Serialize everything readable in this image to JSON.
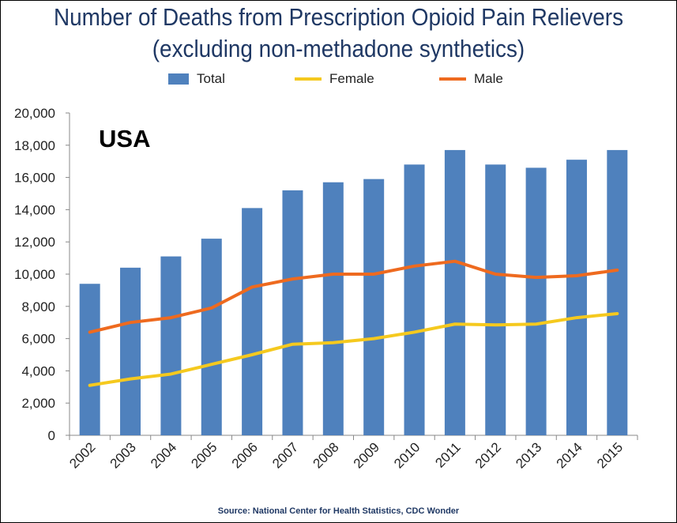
{
  "chart_data": {
    "type": "bar",
    "title": "Number of Deaths from Prescription Opioid Pain Relievers (excluding non-methadone synthetics)",
    "title_lines": [
      "Number of Deaths from Prescription Opioid Pain Relievers",
      "(excluding non-methadone synthetics)"
    ],
    "annotation": "USA",
    "source": "Source: National Center for Health Statistics, CDC Wonder",
    "categories": [
      "2002",
      "2003",
      "2004",
      "2005",
      "2006",
      "2007",
      "2008",
      "2009",
      "2010",
      "2011",
      "2012",
      "2013",
      "2014",
      "2015"
    ],
    "ylim": [
      0,
      20000
    ],
    "yticks": [
      0,
      2000,
      4000,
      6000,
      8000,
      10000,
      12000,
      14000,
      16000,
      18000,
      20000
    ],
    "ytick_labels": [
      "0",
      "2,000",
      "4,000",
      "6,000",
      "8,000",
      "10,000",
      "12,000",
      "14,000",
      "16,000",
      "18,000",
      "20,000"
    ],
    "grid": false,
    "legend_placement": "top",
    "series": [
      {
        "name": "Total",
        "type": "bar",
        "color": "#4F81BD",
        "values": [
          9400,
          10400,
          11100,
          12200,
          14100,
          15200,
          15700,
          15900,
          16800,
          17700,
          16800,
          16600,
          17100,
          17700
        ]
      },
      {
        "name": "Female",
        "type": "line",
        "color": "#F5C91E",
        "values": [
          3100,
          3500,
          3800,
          4400,
          5000,
          5650,
          5750,
          6000,
          6400,
          6900,
          6850,
          6900,
          7300,
          7550
        ]
      },
      {
        "name": "Male",
        "type": "line",
        "color": "#EE6A1F",
        "values": [
          6400,
          7000,
          7300,
          7900,
          9200,
          9700,
          10000,
          10000,
          10500,
          10800,
          10000,
          9800,
          9900,
          10250
        ]
      }
    ]
  }
}
